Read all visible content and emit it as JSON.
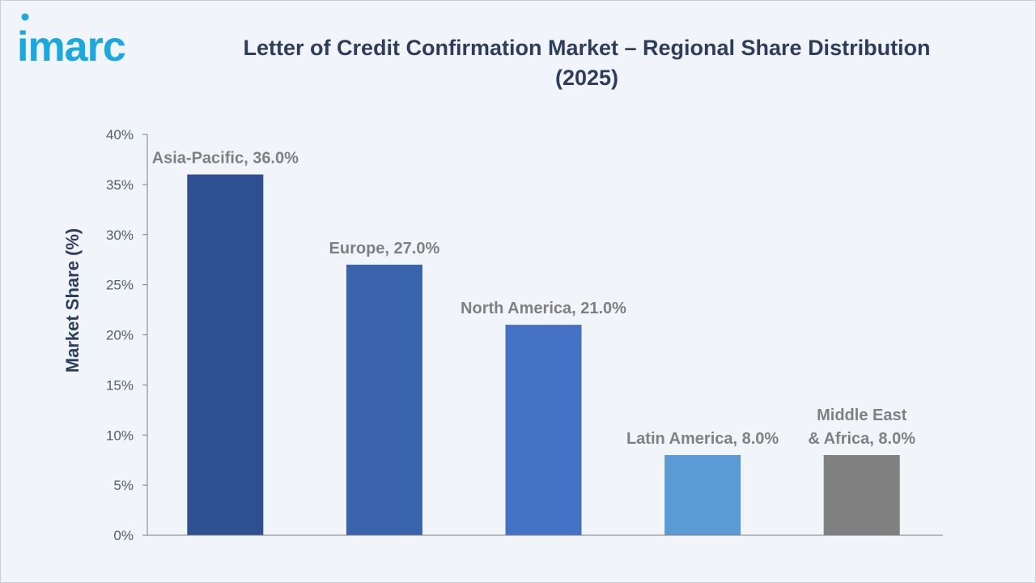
{
  "brand": {
    "logo_text": "imarc",
    "logo_color": "#1aa8e0"
  },
  "title_lines": [
    "Letter of Credit Confirmation Market – Regional Share Distribution",
    "(2025)"
  ],
  "chart_data": {
    "type": "bar",
    "title": "Letter of Credit Confirmation Market – Regional Share Distribution (2025)",
    "ylabel": "Market Share (%)",
    "xlabel": "",
    "ylim": [
      0,
      40
    ],
    "yticks": [
      0,
      5,
      10,
      15,
      20,
      25,
      30,
      35,
      40
    ],
    "ytick_labels": [
      "0%",
      "5%",
      "10%",
      "15%",
      "20%",
      "25%",
      "30%",
      "35%",
      "40%"
    ],
    "grid": false,
    "legend": "none",
    "categories": [
      "Asia-Pacific",
      "Europe",
      "North America",
      "Latin America",
      "Middle East & Africa"
    ],
    "values": [
      36.0,
      27.0,
      21.0,
      8.0,
      8.0
    ],
    "data_labels": [
      [
        "Asia-Pacific, 36.0%"
      ],
      [
        "Europe, 27.0%"
      ],
      [
        "North America, 21.0%"
      ],
      [
        "Latin America, 8.0%"
      ],
      [
        "Middle East",
        "& Africa, 8.0%"
      ]
    ],
    "colors": [
      "#2e5090",
      "#3a63ad",
      "#4472c4",
      "#5b9bd5",
      "#808080"
    ],
    "label_color": "#808080",
    "axis_color": "#808080",
    "ylabel_color": "#2e3d5e"
  }
}
